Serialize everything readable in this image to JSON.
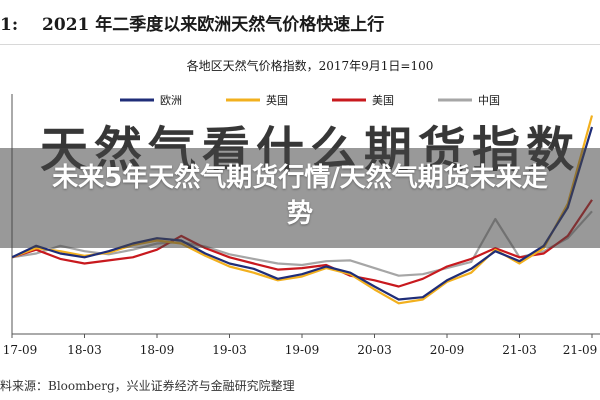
{
  "header": {
    "prefix": "1:",
    "title": "2021 年二季度以来欧洲天然气价格快速上行"
  },
  "banner": {
    "title": "未来5年天然气期货行情/天然气期货未来走势",
    "watermark": "天然气看什么期货指数"
  },
  "source": "料来源：Bloomberg，兴业证券经济与金融研究院整理",
  "colors": {
    "europe": "#1f2d78",
    "uk": "#f2b01e",
    "us": "#c8191e",
    "china": "#a6a6a6"
  },
  "chart_data": {
    "type": "line",
    "title": "各地区天然气价格指数，2017年9月1日=100",
    "xlabel": "",
    "ylabel": "",
    "x_ticks": [
      "17-09",
      "18-03",
      "18-09",
      "19-03",
      "19-09",
      "20-03",
      "20-09",
      "21-03",
      "21-09"
    ],
    "x": [
      "17-09",
      "17-11",
      "18-01",
      "18-03",
      "18-05",
      "18-07",
      "18-09",
      "18-11",
      "19-01",
      "19-03",
      "19-05",
      "19-07",
      "19-09",
      "19-11",
      "20-01",
      "20-03",
      "20-05",
      "20-07",
      "20-09",
      "20-11",
      "21-01",
      "21-03",
      "21-05",
      "21-07",
      "21-09"
    ],
    "ylim": [
      0,
      300
    ],
    "legend_position": "top",
    "series": [
      {
        "name": "欧洲",
        "color_key": "europe",
        "values": [
          100,
          115,
          105,
          100,
          108,
          118,
          125,
          122,
          105,
          92,
          85,
          72,
          78,
          88,
          80,
          62,
          45,
          48,
          70,
          85,
          108,
          95,
          115,
          165,
          270
        ]
      },
      {
        "name": "英国",
        "color_key": "uk",
        "values": [
          100,
          112,
          108,
          102,
          106,
          116,
          122,
          118,
          102,
          88,
          80,
          70,
          75,
          86,
          78,
          58,
          40,
          45,
          68,
          80,
          110,
          92,
          112,
          170,
          285
        ]
      },
      {
        "name": "美国",
        "color_key": "us",
        "values": [
          100,
          110,
          98,
          92,
          96,
          100,
          110,
          128,
          112,
          100,
          92,
          84,
          86,
          90,
          76,
          70,
          62,
          72,
          88,
          98,
          112,
          100,
          105,
          128,
          175
        ]
      },
      {
        "name": "中国",
        "color_key": "china",
        "values": [
          100,
          105,
          115,
          108,
          104,
          110,
          118,
          120,
          114,
          104,
          98,
          92,
          90,
          95,
          96,
          86,
          76,
          78,
          86,
          94,
          150,
          100,
          108,
          125,
          160
        ]
      }
    ]
  }
}
